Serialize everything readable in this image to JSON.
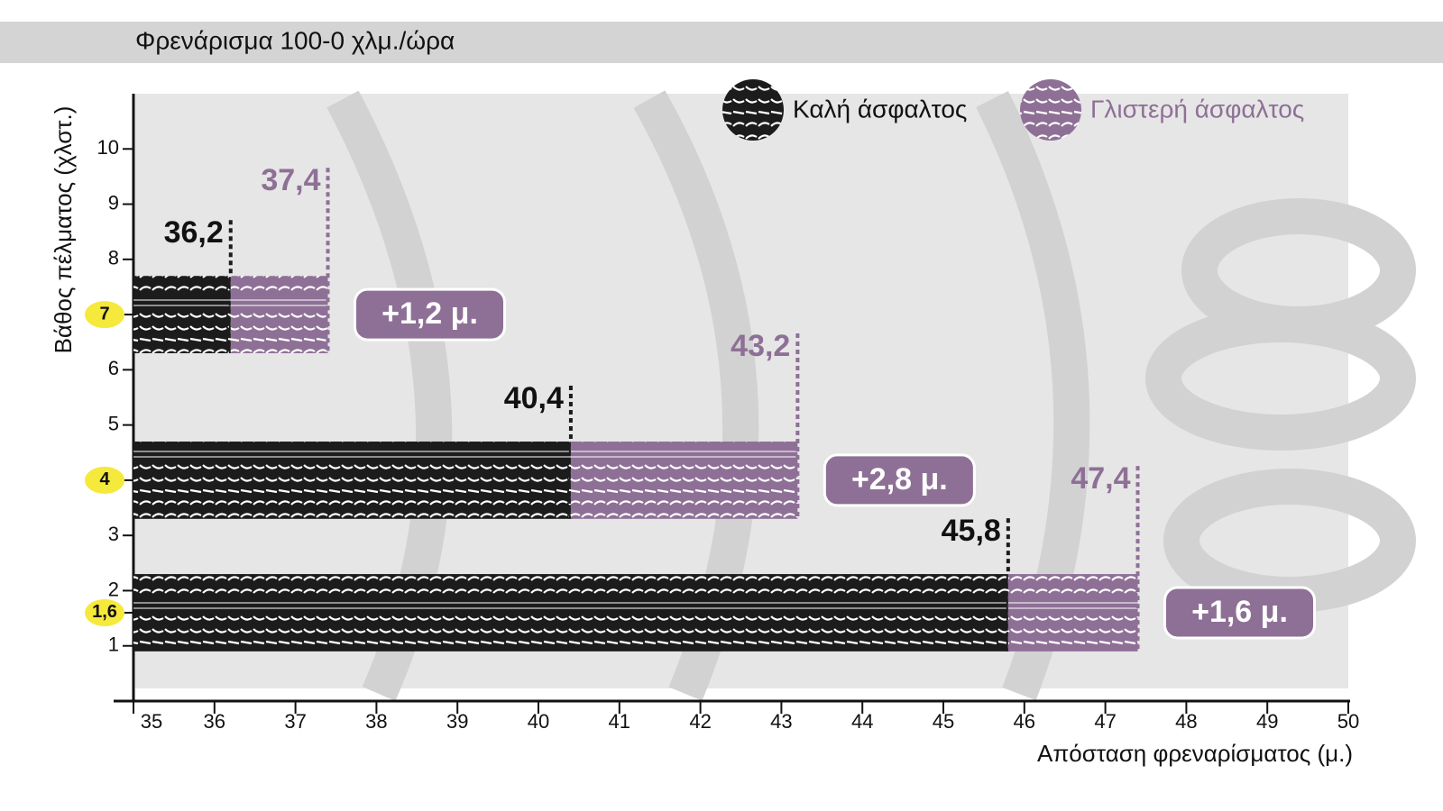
{
  "chart_data": {
    "type": "range_bar",
    "title": "Φρενάρισμα 100-0 χλμ./ώρα",
    "y_label": "Βάθος πέλματος (χλστ.)",
    "x_label": "Απόσταση φρεναρίσματος (μ.)",
    "y": [
      7,
      4,
      {
        "value": 1.6,
        "label": "1,6"
      }
    ],
    "series": [
      {
        "name": "Καλή άσφαλτος",
        "color": "#1c1c1c",
        "values": [
          36.2,
          40.4,
          45.8
        ],
        "value_labels": [
          "36,2",
          "40,4",
          "45,8"
        ]
      },
      {
        "name": "Γλιστερή άσφαλτος",
        "color": "#8e7096",
        "values": [
          37.4,
          43.2,
          47.4
        ],
        "value_labels": [
          "37,4",
          "43,2",
          "47,4"
        ]
      }
    ],
    "annotations": [
      "+1,2 μ.",
      "+2,8 μ.",
      "+1,6 μ."
    ],
    "xlim": [
      35,
      50
    ],
    "xticks": [
      35,
      36,
      37,
      38,
      39,
      40,
      41,
      42,
      43,
      44,
      45,
      46,
      47,
      48,
      49,
      50
    ],
    "ylim": [
      0,
      11
    ],
    "yticks": [
      1,
      2,
      3,
      5,
      6,
      8,
      9,
      10
    ]
  }
}
